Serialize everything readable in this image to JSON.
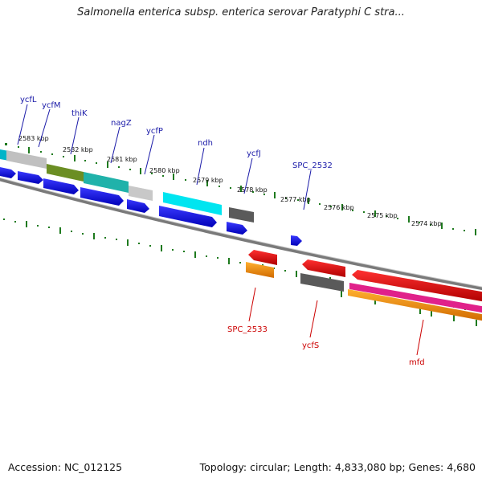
{
  "title": "Salmonella enterica subsp. enterica serovar Paratyphi C stra...",
  "footer": {
    "accession": "Accession: NC_012125",
    "topology": "Topology: circular; Length: 4,833,080 bp; Genes: 4,680"
  },
  "colors": {
    "forward_label": "#1a1aa8",
    "reverse_label": "#cc0000",
    "tick": "#1e7a1e",
    "backbone": "#8a8a8a"
  },
  "kbp_labels": [
    "2583 kbp",
    "2582 kbp",
    "2581 kbp",
    "2580 kbp",
    "2579 kbp",
    "2578 kbp",
    "2577 kbp",
    "2576 kbp",
    "2575 kbp",
    "2574 kbp"
  ],
  "forward_gene_labels": [
    "ycfL",
    "ycfM",
    "thiK",
    "nagZ",
    "ycfP",
    "ndh",
    "ycfJ",
    "SPC_2532"
  ],
  "reverse_gene_labels": [
    "SPC_2533",
    "ycfS",
    "mfd"
  ]
}
